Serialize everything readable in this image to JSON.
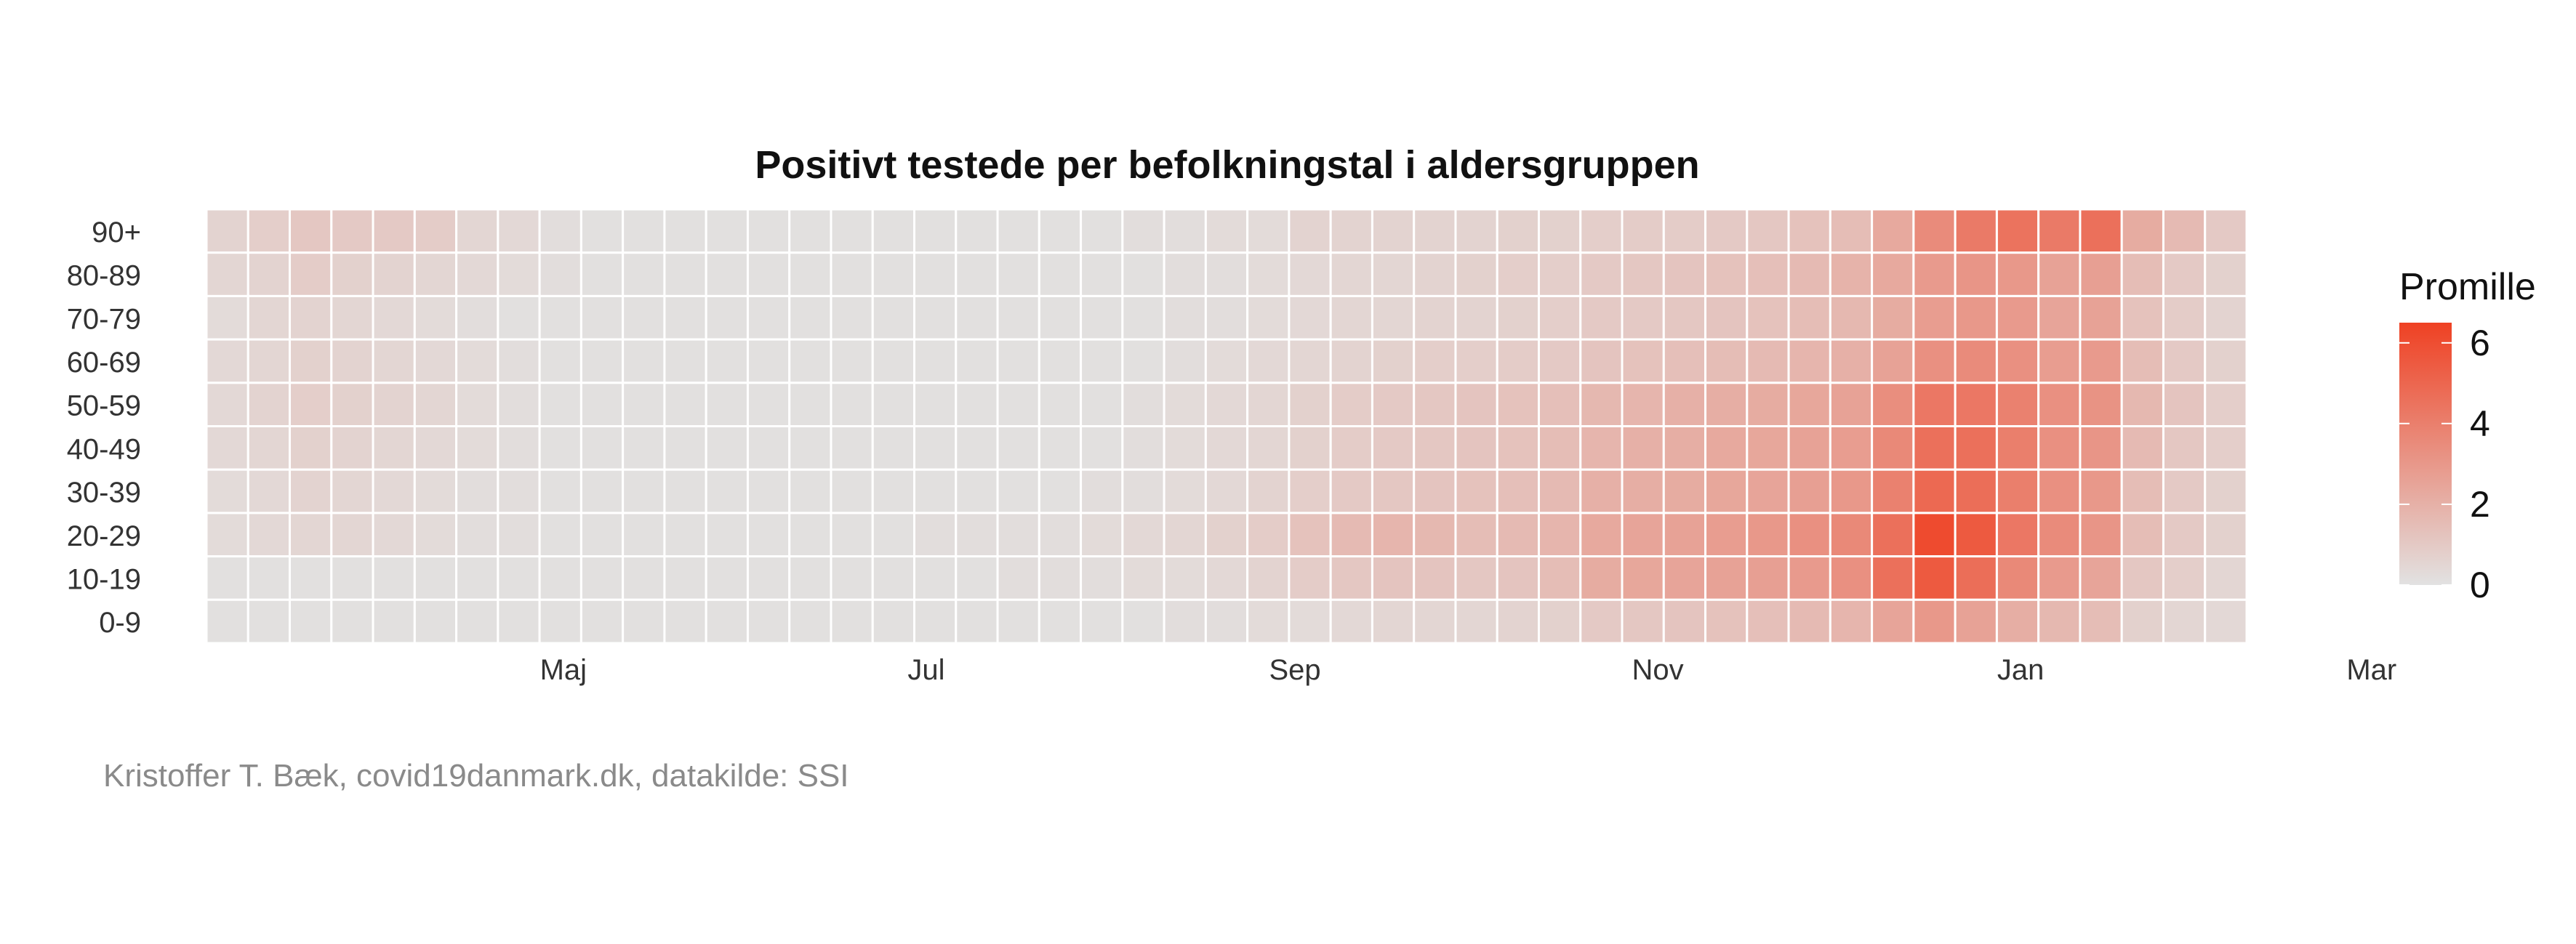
{
  "chart_data": {
    "type": "heatmap",
    "title": "Positivt testede per befolkningstal i aldersgruppen",
    "y_categories": [
      "90+",
      "80-89",
      "70-79",
      "60-69",
      "50-59",
      "40-49",
      "30-39",
      "20-29",
      "10-19",
      "0-9"
    ],
    "x_ticks": [
      "Maj",
      "Jul",
      "Sep",
      "Nov",
      "Jan",
      "Mar"
    ],
    "x_range": [
      "2020-03-01",
      "2021-03-01"
    ],
    "week_starts": [
      "2020-03-02",
      "2020-03-09",
      "2020-03-16",
      "2020-03-23",
      "2020-03-30",
      "2020-04-06",
      "2020-04-13",
      "2020-04-20",
      "2020-04-27",
      "2020-05-04",
      "2020-05-11",
      "2020-05-18",
      "2020-05-25",
      "2020-06-01",
      "2020-06-08",
      "2020-06-15",
      "2020-06-22",
      "2020-06-29",
      "2020-07-06",
      "2020-07-13",
      "2020-07-20",
      "2020-07-27",
      "2020-08-03",
      "2020-08-10",
      "2020-08-17",
      "2020-08-24",
      "2020-08-31",
      "2020-09-07",
      "2020-09-14",
      "2020-09-21",
      "2020-09-28",
      "2020-10-05",
      "2020-10-12",
      "2020-10-19",
      "2020-10-26",
      "2020-11-02",
      "2020-11-09",
      "2020-11-16",
      "2020-11-23",
      "2020-11-30",
      "2020-12-07",
      "2020-12-14",
      "2020-12-21",
      "2020-12-28",
      "2021-01-04",
      "2021-01-11",
      "2021-01-18",
      "2021-01-25",
      "2021-02-01"
    ],
    "z_label": "Promille",
    "z_range": [
      0,
      6.5
    ],
    "z_ticks": [
      0,
      2,
      4,
      6
    ],
    "colors": {
      "low": "#e2e2e2",
      "high": "#ef4123"
    },
    "values": [
      [
        0.6,
        0.8,
        1.1,
        1.0,
        1.0,
        0.9,
        0.5,
        0.4,
        0.2,
        0.1,
        0.1,
        0.1,
        0.1,
        0.1,
        0.1,
        0.1,
        0.1,
        0.1,
        0.1,
        0.1,
        0.1,
        0.1,
        0.2,
        0.2,
        0.3,
        0.3,
        0.6,
        0.6,
        0.6,
        0.6,
        0.6,
        0.7,
        0.7,
        0.8,
        0.9,
        0.9,
        1.0,
        1.1,
        1.3,
        1.5,
        2.3,
        3.5,
        4.2,
        4.5,
        4.2,
        4.6,
        2.2,
        1.6,
        1.0
      ],
      [
        0.5,
        0.6,
        0.9,
        0.7,
        0.6,
        0.5,
        0.4,
        0.3,
        0.2,
        0.1,
        0.1,
        0.1,
        0.1,
        0.1,
        0.1,
        0.1,
        0.1,
        0.1,
        0.1,
        0.1,
        0.1,
        0.1,
        0.1,
        0.2,
        0.2,
        0.3,
        0.4,
        0.5,
        0.5,
        0.6,
        0.7,
        0.8,
        0.8,
        1.0,
        1.1,
        1.2,
        1.3,
        1.4,
        1.6,
        1.9,
        2.3,
        2.9,
        3.1,
        3.0,
        2.6,
        2.7,
        1.5,
        1.0,
        0.7
      ],
      [
        0.3,
        0.5,
        0.6,
        0.5,
        0.4,
        0.3,
        0.2,
        0.1,
        0.1,
        0.1,
        0.1,
        0.1,
        0.1,
        0.1,
        0.1,
        0.1,
        0.1,
        0.1,
        0.1,
        0.1,
        0.1,
        0.1,
        0.1,
        0.2,
        0.2,
        0.3,
        0.4,
        0.5,
        0.5,
        0.6,
        0.6,
        0.7,
        0.8,
        1.0,
        1.0,
        1.1,
        1.2,
        1.3,
        1.5,
        1.7,
        2.2,
        2.8,
        3.0,
        2.9,
        2.5,
        2.6,
        1.3,
        0.9,
        0.6
      ],
      [
        0.4,
        0.5,
        0.7,
        0.6,
        0.5,
        0.4,
        0.3,
        0.2,
        0.1,
        0.1,
        0.1,
        0.1,
        0.1,
        0.1,
        0.1,
        0.1,
        0.1,
        0.1,
        0.1,
        0.1,
        0.1,
        0.1,
        0.1,
        0.2,
        0.3,
        0.4,
        0.5,
        0.6,
        0.7,
        0.8,
        0.8,
        0.9,
        1.0,
        1.2,
        1.3,
        1.4,
        1.5,
        1.6,
        1.8,
        2.0,
        2.6,
        3.3,
        3.5,
        3.3,
        2.8,
        2.9,
        1.5,
        1.0,
        0.7
      ],
      [
        0.4,
        0.6,
        0.8,
        0.7,
        0.6,
        0.5,
        0.3,
        0.2,
        0.1,
        0.1,
        0.1,
        0.1,
        0.1,
        0.1,
        0.1,
        0.1,
        0.1,
        0.1,
        0.1,
        0.1,
        0.1,
        0.1,
        0.2,
        0.3,
        0.4,
        0.5,
        0.7,
        0.9,
        1.0,
        1.1,
        1.2,
        1.3,
        1.4,
        1.7,
        1.8,
        2.0,
        2.1,
        2.2,
        2.4,
        2.6,
        3.4,
        4.3,
        4.3,
        3.9,
        3.3,
        3.2,
        1.7,
        1.2,
        0.8
      ],
      [
        0.4,
        0.5,
        0.7,
        0.6,
        0.5,
        0.4,
        0.3,
        0.2,
        0.1,
        0.1,
        0.1,
        0.1,
        0.1,
        0.1,
        0.1,
        0.1,
        0.1,
        0.1,
        0.1,
        0.1,
        0.1,
        0.1,
        0.2,
        0.3,
        0.4,
        0.5,
        0.7,
        0.9,
        1.0,
        1.1,
        1.2,
        1.3,
        1.5,
        1.8,
        2.0,
        2.1,
        2.3,
        2.4,
        2.6,
        2.8,
        3.6,
        4.6,
        4.6,
        4.0,
        3.3,
        3.1,
        1.6,
        1.1,
        0.8
      ],
      [
        0.3,
        0.4,
        0.6,
        0.5,
        0.4,
        0.3,
        0.2,
        0.2,
        0.1,
        0.1,
        0.1,
        0.1,
        0.1,
        0.1,
        0.1,
        0.1,
        0.1,
        0.1,
        0.1,
        0.1,
        0.1,
        0.2,
        0.2,
        0.3,
        0.4,
        0.6,
        0.8,
        1.0,
        1.1,
        1.2,
        1.3,
        1.4,
        1.6,
        2.0,
        2.1,
        2.2,
        2.4,
        2.5,
        2.7,
        3.0,
        3.9,
        4.9,
        4.7,
        4.0,
        3.3,
        3.0,
        1.5,
        1.0,
        0.7
      ],
      [
        0.3,
        0.4,
        0.5,
        0.5,
        0.4,
        0.3,
        0.2,
        0.2,
        0.1,
        0.1,
        0.1,
        0.1,
        0.1,
        0.1,
        0.1,
        0.1,
        0.1,
        0.2,
        0.2,
        0.2,
        0.2,
        0.3,
        0.4,
        0.5,
        0.7,
        0.9,
        1.3,
        1.6,
        1.8,
        1.7,
        1.5,
        1.6,
        1.8,
        2.3,
        2.5,
        2.6,
        2.8,
        3.0,
        3.3,
        3.6,
        4.6,
        6.1,
        5.5,
        4.3,
        3.5,
        3.1,
        1.5,
        1.0,
        0.7
      ],
      [
        0.1,
        0.1,
        0.1,
        0.1,
        0.1,
        0.1,
        0.1,
        0.1,
        0.1,
        0.1,
        0.1,
        0.1,
        0.1,
        0.1,
        0.1,
        0.1,
        0.1,
        0.1,
        0.1,
        0.2,
        0.2,
        0.2,
        0.3,
        0.3,
        0.4,
        0.6,
        0.9,
        1.1,
        1.2,
        1.2,
        1.1,
        1.2,
        1.5,
        2.2,
        2.4,
        2.5,
        2.6,
        2.7,
        2.9,
        3.3,
        4.6,
        5.5,
        4.7,
        3.6,
        2.9,
        2.5,
        1.1,
        0.8,
        0.5
      ],
      [
        0.1,
        0.1,
        0.1,
        0.1,
        0.1,
        0.1,
        0.1,
        0.1,
        0.1,
        0.1,
        0.1,
        0.1,
        0.1,
        0.1,
        0.1,
        0.1,
        0.1,
        0.1,
        0.1,
        0.1,
        0.1,
        0.1,
        0.1,
        0.2,
        0.2,
        0.3,
        0.3,
        0.4,
        0.5,
        0.5,
        0.5,
        0.6,
        0.7,
        1.0,
        1.1,
        1.2,
        1.3,
        1.4,
        1.6,
        1.8,
        2.5,
        3.0,
        2.6,
        2.1,
        1.7,
        1.5,
        0.7,
        0.5,
        0.4
      ]
    ]
  },
  "caption": "Kristoffer T. Bæk, covid19danmark.dk, datakilde: SSI"
}
